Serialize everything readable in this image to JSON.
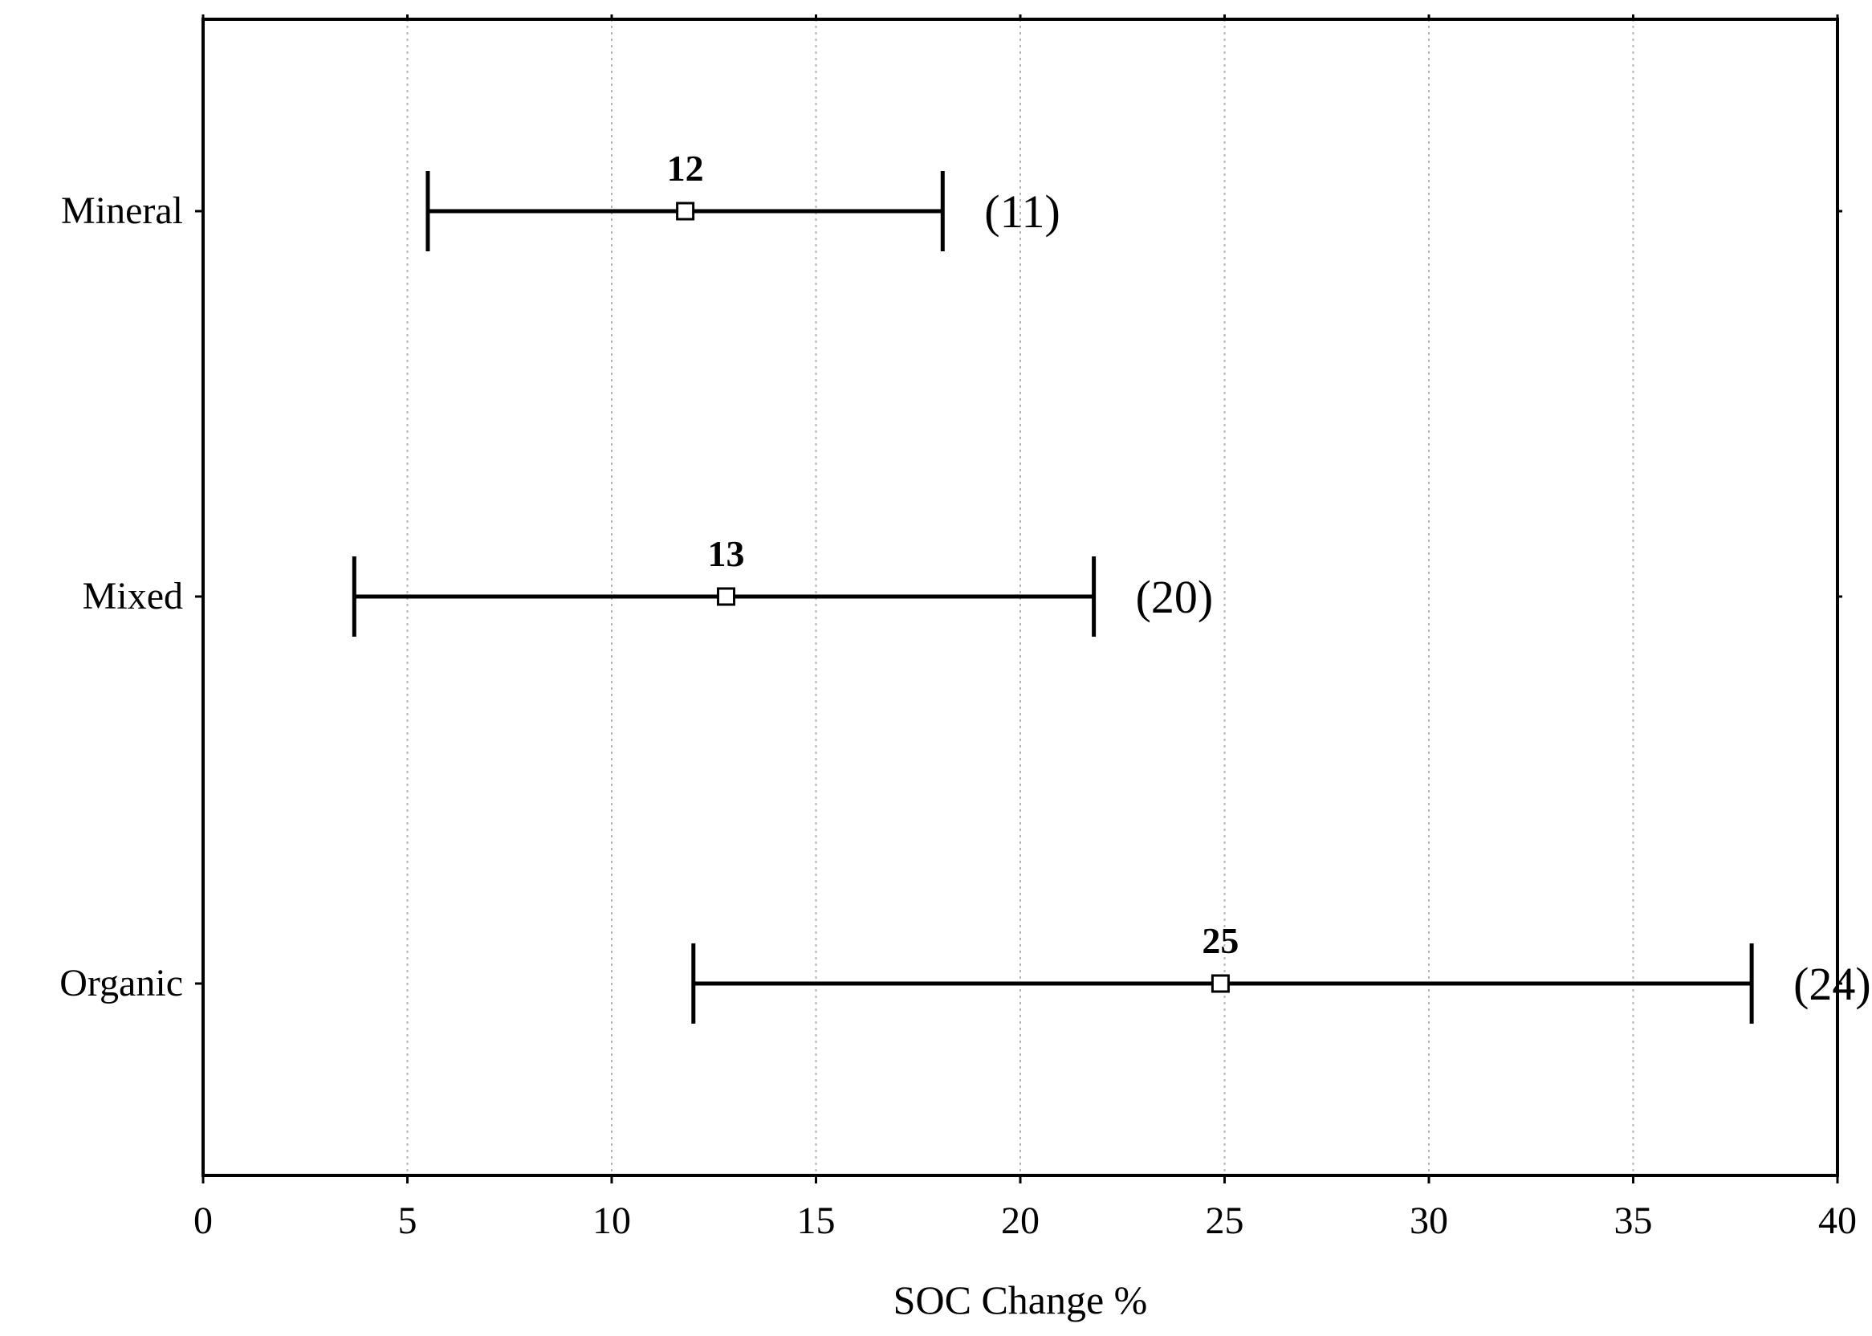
{
  "chart_data": {
    "type": "forest",
    "title": "",
    "xlabel": "SOC Change %",
    "ylabel": "",
    "xlim": [
      0,
      40
    ],
    "xticks": [
      0,
      5,
      10,
      15,
      20,
      25,
      30,
      35,
      40
    ],
    "grid": "vertical dotted",
    "categories": [
      "Mineral",
      "Mixed",
      "Organic"
    ],
    "estimates": [
      11.8,
      12.8,
      24.9
    ],
    "ci_low": [
      5.5,
      3.7,
      12.0
    ],
    "ci_high": [
      18.1,
      21.8,
      37.9
    ],
    "value_labels": [
      "12",
      "13",
      "25"
    ],
    "n_labels": [
      "(11)",
      "(20)",
      "(24)"
    ]
  }
}
